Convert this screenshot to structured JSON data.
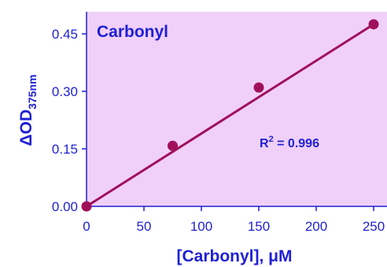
{
  "chart_data": {
    "type": "scatter",
    "title": "Carbonyl",
    "xlabel_main": "[Carbonyl], ",
    "xlabel_unit": "μM",
    "ylabel_prefix": "ΔOD",
    "ylabel_sub": "375nm",
    "xlim": [
      0,
      250
    ],
    "ylim": [
      0.0,
      0.45
    ],
    "x_ticks": [
      0,
      50,
      100,
      150,
      200,
      250
    ],
    "x_tick_labels": [
      "0",
      "50",
      "100",
      "150",
      "200",
      "250"
    ],
    "y_ticks": [
      0.0,
      0.15,
      0.3,
      0.45
    ],
    "y_tick_labels": [
      "0.00",
      "0.15",
      "0.30",
      "0.45"
    ],
    "series": [
      {
        "x": [
          0,
          75,
          150,
          250
        ],
        "y": [
          0.0,
          0.158,
          0.31,
          0.475
        ]
      }
    ],
    "fit_line": {
      "x": [
        0,
        250
      ],
      "y": [
        0.0,
        0.475
      ]
    },
    "annotation": {
      "r2_prefix": "R",
      "r2_sup": "2",
      "r2_value": " = 0.996"
    },
    "grid": false,
    "legend": "none"
  },
  "colors": {
    "plot_background": "#f0d0f8",
    "text": "#1f1fd6",
    "axis": "#1f1fd6",
    "series": "#a0105a"
  }
}
